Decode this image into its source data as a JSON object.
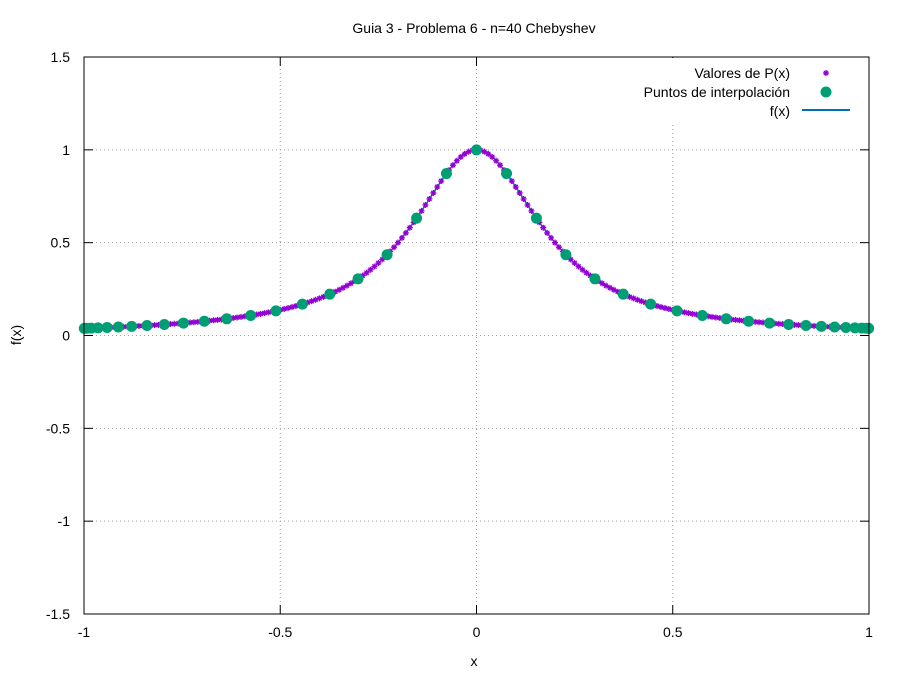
{
  "chart_data": {
    "type": "scatter",
    "title": "Guia 3 - Problema 6 - n=40 Chebyshev",
    "xlabel": "x",
    "ylabel": "f(x)",
    "xlim": [
      -1,
      1
    ],
    "ylim": [
      -1.5,
      1.5
    ],
    "grid": true,
    "legend_position": "top-right",
    "function": "1/(1+25*x^2)",
    "x_ticks": [
      -1,
      -0.5,
      0,
      0.5,
      1
    ],
    "x_tick_labels": [
      "-1",
      "-0.5",
      "0",
      "0.5",
      "1"
    ],
    "y_ticks": [
      -1.5,
      -1,
      -0.5,
      0,
      0.5,
      1,
      1.5
    ],
    "y_tick_labels": [
      "-1.5",
      "-1",
      "-0.5",
      "0",
      "0.5",
      "1",
      "1.5"
    ],
    "series": [
      {
        "name": "Valores de P(x)",
        "style": "points",
        "marker": "star",
        "color": "#9400d3",
        "x_start": -1,
        "x_end": 1,
        "point_count": 201
      },
      {
        "name": "Puntos de interpolación",
        "style": "points",
        "marker": "circle",
        "color": "#009e73",
        "node_type": "Chebyshev",
        "node_count": 41
      },
      {
        "name": "f(x)",
        "style": "line",
        "color": "#0072b2"
      }
    ]
  }
}
